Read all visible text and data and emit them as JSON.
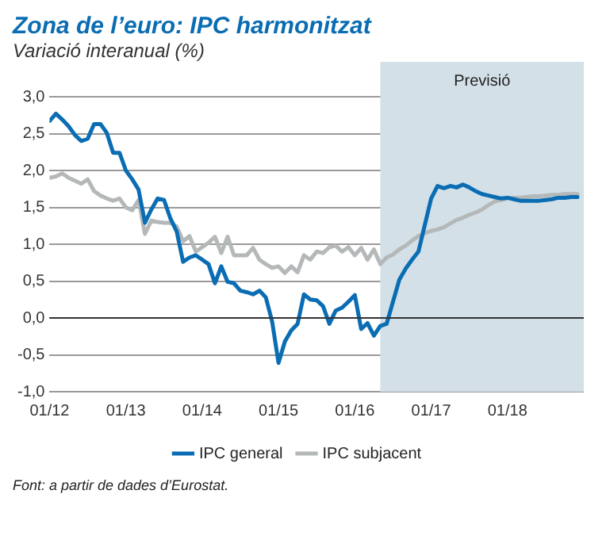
{
  "chart_data": {
    "type": "line",
    "title": "Zona de l’euro: IPC harmonitzat",
    "subtitle": "Variació interanual (%)",
    "x": [
      "2012-01",
      "2012-02",
      "2012-03",
      "2012-04",
      "2012-05",
      "2012-06",
      "2012-07",
      "2012-08",
      "2012-09",
      "2012-10",
      "2012-11",
      "2012-12",
      "2013-01",
      "2013-02",
      "2013-03",
      "2013-04",
      "2013-05",
      "2013-06",
      "2013-07",
      "2013-08",
      "2013-09",
      "2013-10",
      "2013-11",
      "2013-12",
      "2014-01",
      "2014-02",
      "2014-03",
      "2014-04",
      "2014-05",
      "2014-06",
      "2014-07",
      "2014-08",
      "2014-09",
      "2014-10",
      "2014-11",
      "2014-12",
      "2015-01",
      "2015-02",
      "2015-03",
      "2015-04",
      "2015-05",
      "2015-06",
      "2015-07",
      "2015-08",
      "2015-09",
      "2015-10",
      "2015-11",
      "2015-12",
      "2016-01",
      "2016-02",
      "2016-03",
      "2016-04",
      "2016-05",
      "2016-06",
      "2016-07",
      "2016-08",
      "2016-09",
      "2016-10",
      "2016-11",
      "2016-12",
      "2017-01",
      "2017-02",
      "2017-03",
      "2017-04",
      "2017-05",
      "2017-06",
      "2017-07",
      "2017-08",
      "2017-09",
      "2017-10",
      "2017-11",
      "2017-12",
      "2018-01",
      "2018-02",
      "2018-03",
      "2018-04",
      "2018-05",
      "2018-06",
      "2018-07",
      "2018-08",
      "2018-09",
      "2018-10",
      "2018-11",
      "2018-12"
    ],
    "series": [
      {
        "name": "IPC general",
        "color": "#0a6db3",
        "values": [
          2.67,
          2.77,
          2.69,
          2.6,
          2.48,
          2.4,
          2.43,
          2.63,
          2.63,
          2.51,
          2.24,
          2.24,
          2.0,
          1.88,
          1.74,
          1.29,
          1.47,
          1.62,
          1.6,
          1.35,
          1.17,
          0.76,
          0.82,
          0.85,
          0.79,
          0.73,
          0.47,
          0.7,
          0.49,
          0.47,
          0.37,
          0.35,
          0.32,
          0.37,
          0.28,
          -0.05,
          -0.61,
          -0.32,
          -0.17,
          -0.08,
          0.32,
          0.25,
          0.24,
          0.16,
          -0.08,
          0.1,
          0.14,
          0.22,
          0.31,
          -0.15,
          -0.07,
          -0.24,
          -0.11,
          -0.08,
          0.22,
          0.52,
          0.67,
          0.79,
          0.9,
          1.26,
          1.62,
          1.79,
          1.76,
          1.79,
          1.77,
          1.81,
          1.77,
          1.72,
          1.68,
          1.66,
          1.64,
          1.62,
          1.63,
          1.61,
          1.59,
          1.59,
          1.59,
          1.59,
          1.6,
          1.61,
          1.63,
          1.63,
          1.64,
          1.64
        ]
      },
      {
        "name": "IPC subjacent",
        "color": "#b4b8b9",
        "values": [
          1.9,
          1.92,
          1.96,
          1.9,
          1.86,
          1.82,
          1.88,
          1.72,
          1.66,
          1.62,
          1.59,
          1.62,
          1.5,
          1.46,
          1.6,
          1.14,
          1.32,
          1.3,
          1.29,
          1.29,
          1.24,
          1.04,
          1.11,
          0.9,
          0.96,
          1.02,
          1.1,
          0.88,
          1.1,
          0.85,
          0.85,
          0.85,
          0.95,
          0.79,
          0.73,
          0.68,
          0.7,
          0.61,
          0.7,
          0.62,
          0.85,
          0.79,
          0.9,
          0.88,
          0.96,
          0.98,
          0.9,
          0.96,
          0.85,
          0.95,
          0.79,
          0.93,
          0.73,
          0.82,
          0.86,
          0.93,
          0.98,
          1.05,
          1.11,
          1.15,
          1.18,
          1.2,
          1.23,
          1.28,
          1.33,
          1.36,
          1.4,
          1.43,
          1.47,
          1.53,
          1.58,
          1.6,
          1.62,
          1.63,
          1.63,
          1.64,
          1.65,
          1.65,
          1.66,
          1.67,
          1.67,
          1.68,
          1.68,
          1.68
        ]
      }
    ],
    "xlim": [
      "2012-01",
      "2019-01"
    ],
    "xticks": [
      {
        "value": "2012-01",
        "label": "01/12"
      },
      {
        "value": "2013-01",
        "label": "01/13"
      },
      {
        "value": "2014-01",
        "label": "01/14"
      },
      {
        "value": "2015-01",
        "label": "01/15"
      },
      {
        "value": "2016-01",
        "label": "01/16"
      },
      {
        "value": "2017-01",
        "label": "01/17"
      },
      {
        "value": "2018-01",
        "label": "01/18"
      }
    ],
    "ylim": [
      -1,
      3
    ],
    "yticks": [
      {
        "value": -1,
        "label": "-1,0"
      },
      {
        "value": -0.5,
        "label": "-0,5"
      },
      {
        "value": 0,
        "label": "0,0"
      },
      {
        "value": 0.5,
        "label": "0,5"
      },
      {
        "value": 1,
        "label": "1,0"
      },
      {
        "value": 1.5,
        "label": "1,5"
      },
      {
        "value": 2,
        "label": "2,0"
      },
      {
        "value": 2.5,
        "label": "2,5"
      },
      {
        "value": 3,
        "label": "3,0"
      }
    ],
    "bands": [
      {
        "axis": "x",
        "from": "2016-05",
        "to": "2019-01",
        "label": "Previsió",
        "color": "#d3e0e8"
      }
    ],
    "grid": "y",
    "legend": "bottom",
    "marker": "none",
    "line_style": "solid",
    "annotations": [
      "Font: a partir de dades d’Eurostat."
    ]
  }
}
